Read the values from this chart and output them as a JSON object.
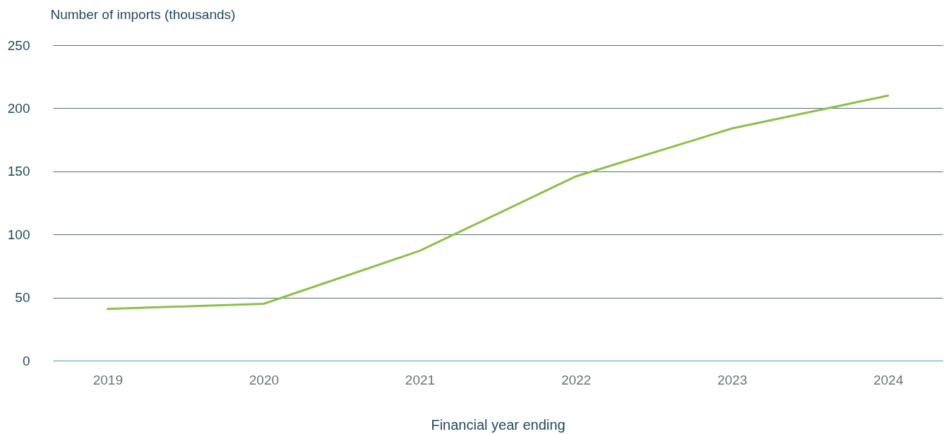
{
  "chart_data": {
    "type": "line",
    "xlabel": "Financial year ending",
    "ylabel": "Number of imports (thousands)",
    "categories": [
      "2019",
      "2020",
      "2021",
      "2022",
      "2023",
      "2024"
    ],
    "series": [
      {
        "color": "#8cc04b",
        "values": [
          41,
          45,
          87,
          146,
          184,
          210
        ]
      }
    ],
    "ylim": [
      0,
      250
    ],
    "yticks": [
      0,
      50,
      100,
      150,
      200,
      250
    ],
    "grid": "y",
    "marker": "none",
    "line_style": "solid"
  }
}
